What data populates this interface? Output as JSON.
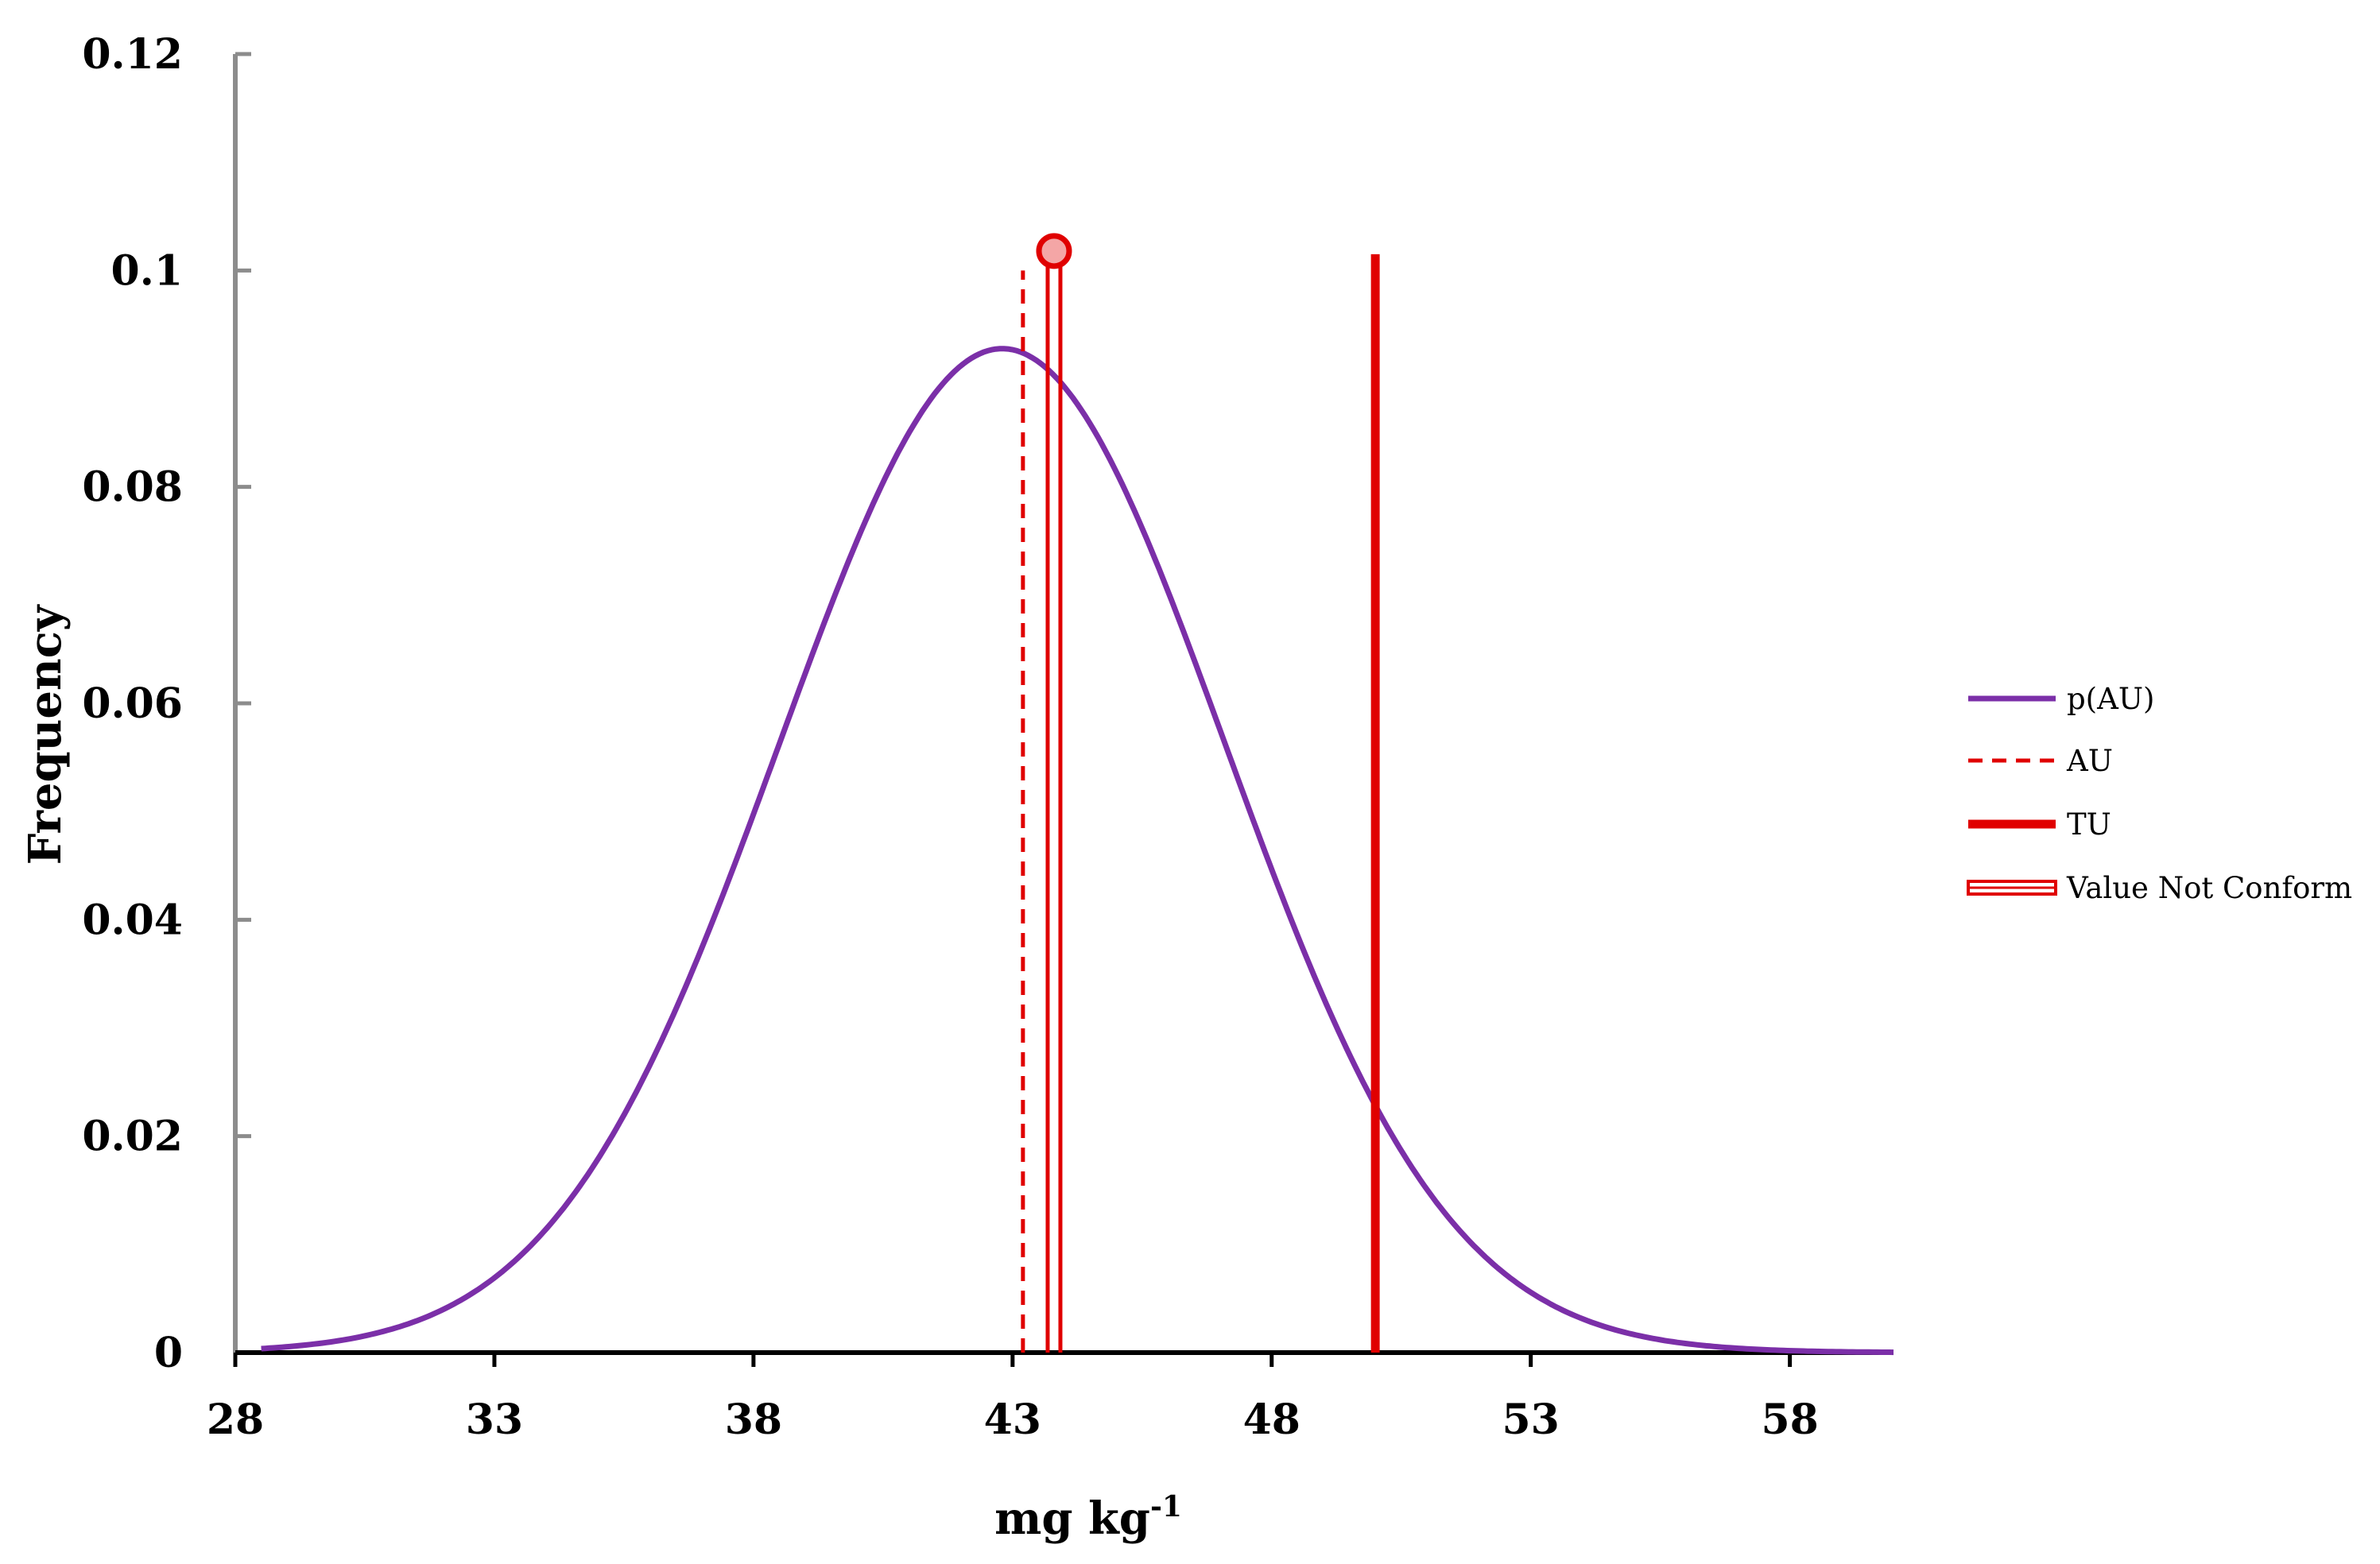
{
  "chart_data": {
    "type": "line",
    "title": "",
    "xlabel": "mg kg",
    "xlabel_superscript": "-1",
    "ylabel": "Frequency",
    "xlim": [
      28,
      60
    ],
    "ylim": [
      0,
      0.12
    ],
    "x_ticks": [
      "28",
      "33",
      "38",
      "43",
      "48",
      "53",
      "58"
    ],
    "y_ticks": [
      "0",
      "0.02",
      "0.04",
      "0.06",
      "0.08",
      "0.1",
      "0.12"
    ],
    "grid": false,
    "legend_position": "right",
    "series": [
      {
        "name": "p(AU)",
        "kind": "curve",
        "color": "#7b2fa8",
        "distribution": "normal",
        "mean": 42.8,
        "sd": 4.3,
        "x_range": [
          28.5,
          60
        ]
      },
      {
        "name": "AU",
        "kind": "vertical-dashed",
        "color": "#e00000",
        "x": 43.2,
        "y_top": 0.1
      },
      {
        "name": "TU",
        "kind": "vertical-solid",
        "color": "#e00000",
        "x": 50,
        "y_top": 0.1015
      },
      {
        "name": "Value Not Conform",
        "kind": "vertical-double-with-marker",
        "color": "#e00000",
        "marker_fill": "#f4a6a6",
        "x": 43.8,
        "y_top": 0.1018
      }
    ]
  }
}
